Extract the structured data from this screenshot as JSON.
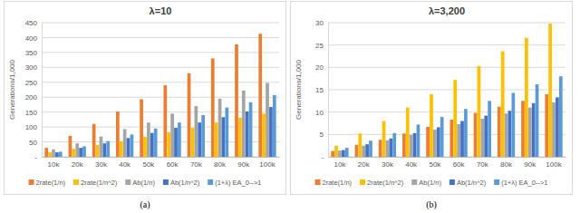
{
  "chart_data": [
    {
      "type": "bar",
      "title": "λ=10",
      "caption": "(a)",
      "y_label": "Generations/1,000",
      "categories": [
        "10k",
        "20k",
        "30k",
        "40k",
        "50k",
        "60k",
        "70k",
        "80k",
        "90k",
        "100k"
      ],
      "series": [
        {
          "name": "2rate(1/n)",
          "color": "#ed7d31",
          "values": [
            30,
            70,
            110,
            152,
            193,
            240,
            280,
            330,
            377,
            413
          ]
        },
        {
          "name": "2rate(1/n^2)",
          "color": "#ffc000",
          "values": [
            15,
            27,
            40,
            52,
            67,
            82,
            97,
            115,
            131,
            145
          ]
        },
        {
          "name": "Ab(1/n)",
          "color": "#a5a5a5",
          "values": [
            25,
            45,
            68,
            93,
            115,
            145,
            170,
            195,
            222,
            248
          ]
        },
        {
          "name": "Ab(1/n^2)",
          "color": "#4472c4",
          "values": [
            15,
            30,
            45,
            63,
            80,
            97,
            115,
            133,
            152,
            167
          ]
        },
        {
          "name": "(1+λ) EA_0-->1",
          "color": "#5b9bd5",
          "values": [
            17,
            35,
            53,
            75,
            95,
            115,
            140,
            165,
            183,
            207
          ]
        }
      ],
      "ylim": [
        0,
        450
      ],
      "yticks": [
        {
          "value": 0,
          "label": "-"
        },
        50,
        100,
        150,
        200,
        250,
        300,
        350,
        400,
        450
      ],
      "grid": true,
      "legend": "bottom"
    },
    {
      "type": "bar",
      "title": "λ=3,200",
      "caption": "(b)",
      "y_label": "Generations/1,000",
      "categories": [
        "10k",
        "20k",
        "30k",
        "40k",
        "50k",
        "60k",
        "70k",
        "80k",
        "90k",
        "100k"
      ],
      "series": [
        {
          "name": "2rate(1/n)",
          "color": "#ed7d31",
          "values": [
            1.3,
            2.7,
            3.8,
            5.2,
            6.7,
            8.3,
            9.8,
            11.2,
            12.5,
            14
          ]
        },
        {
          "name": "2rate(1/n^2)",
          "color": "#ffc000",
          "values": [
            2.5,
            5.2,
            8,
            11,
            14,
            17.2,
            20.3,
            23.6,
            26.6,
            29.8
          ]
        },
        {
          "name": "Ab(1/n)",
          "color": "#a5a5a5",
          "values": [
            1.4,
            2.5,
            3.7,
            4.9,
            6.1,
            7.3,
            8.5,
            9.7,
            11,
            12.2
          ]
        },
        {
          "name": "Ab(1/n^2)",
          "color": "#4472c4",
          "values": [
            1.5,
            2.8,
            4.1,
            5.3,
            6.6,
            8,
            9.2,
            10.3,
            12,
            13.3
          ]
        },
        {
          "name": "(1+λ) EA_0-->1",
          "color": "#5b9bd5",
          "values": [
            2,
            3.6,
            5.3,
            7.2,
            8.9,
            10.7,
            12.5,
            14.3,
            16.2,
            18
          ]
        }
      ],
      "ylim": [
        0,
        30
      ],
      "yticks": [
        {
          "value": 0,
          "label": "-"
        },
        5,
        10,
        15,
        20,
        25,
        30
      ],
      "grid": true,
      "legend": "bottom"
    }
  ]
}
